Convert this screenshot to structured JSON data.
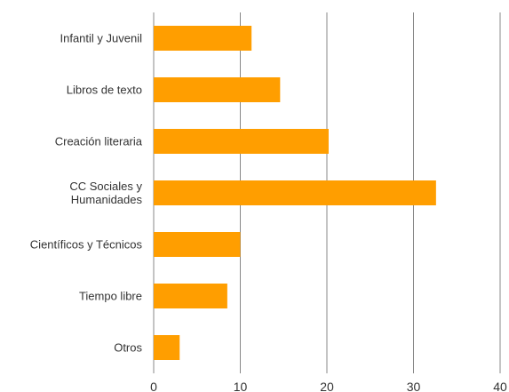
{
  "chart_data": {
    "type": "barh",
    "categories": [
      "Infantil y Juvenil",
      "Libros de texto",
      "Creación literaria",
      "CC Sociales y\nHumanidades",
      "Científicos y Técnicos",
      "Tiempo libre",
      "Otros"
    ],
    "values": [
      11.3,
      14.6,
      20.2,
      32.6,
      10.0,
      8.5,
      3.0
    ],
    "color": "#ff9e00",
    "xlim": [
      0,
      40
    ],
    "xticks": [
      0,
      10,
      20,
      30,
      40
    ],
    "grid": true
  }
}
